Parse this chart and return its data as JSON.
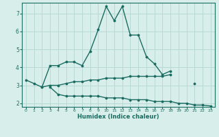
{
  "xlabel": "Humidex (Indice chaleur)",
  "background_color": "#d7eeeb",
  "grid_color": "#b8d8d5",
  "line_color": "#1a6b60",
  "x_values": [
    0,
    1,
    2,
    3,
    4,
    5,
    6,
    7,
    8,
    9,
    10,
    11,
    12,
    13,
    14,
    15,
    16,
    17,
    18,
    19,
    20,
    21,
    22,
    23
  ],
  "line1_y": [
    3.3,
    3.1,
    2.9,
    4.1,
    4.1,
    4.3,
    4.3,
    4.1,
    4.9,
    6.1,
    7.4,
    6.6,
    7.4,
    5.8,
    5.8,
    4.6,
    4.2,
    3.6,
    3.8,
    null,
    null,
    3.1,
    null,
    null
  ],
  "line2_y": [
    null,
    null,
    2.9,
    3.0,
    3.0,
    3.1,
    3.2,
    3.2,
    3.3,
    3.3,
    3.4,
    3.4,
    3.4,
    3.5,
    3.5,
    3.5,
    3.5,
    3.5,
    3.6,
    null,
    null,
    null,
    null,
    null
  ],
  "line3_y": [
    null,
    null,
    null,
    2.9,
    2.5,
    2.4,
    2.4,
    2.4,
    2.4,
    2.4,
    2.3,
    2.3,
    2.3,
    2.2,
    2.2,
    2.2,
    2.1,
    2.1,
    2.1,
    2.0,
    2.0,
    1.9,
    1.9,
    1.85
  ],
  "ylim": [
    1.8,
    7.6
  ],
  "xlim": [
    -0.5,
    23.5
  ],
  "yticks": [
    2,
    3,
    4,
    5,
    6,
    7
  ],
  "xticks": [
    0,
    1,
    2,
    3,
    4,
    5,
    6,
    7,
    8,
    9,
    10,
    11,
    12,
    13,
    14,
    15,
    16,
    17,
    18,
    19,
    20,
    21,
    22,
    23
  ]
}
